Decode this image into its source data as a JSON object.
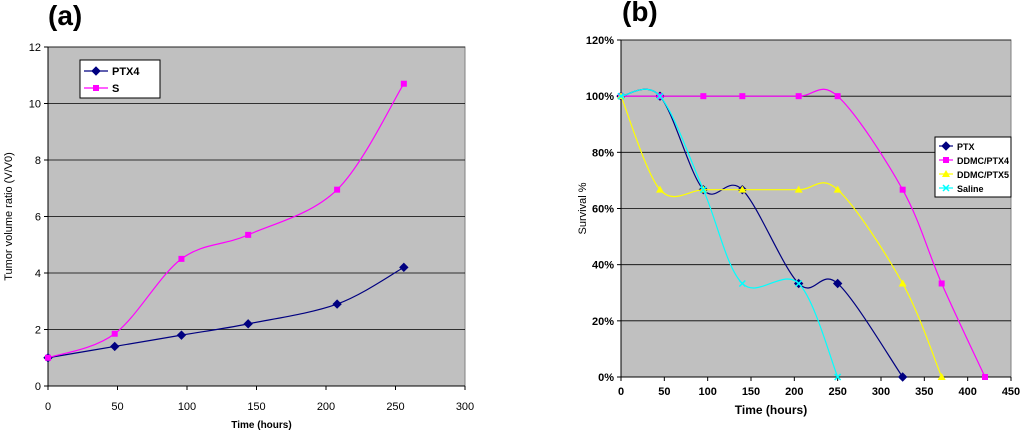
{
  "chart_data": [
    {
      "panel": "(a)",
      "type": "line",
      "xlabel": "Time (hours)",
      "ylabel": "Tumor volume ratio (V/V0)",
      "xlim": [
        0,
        300
      ],
      "ylim": [
        0,
        12
      ],
      "xticks": [
        0,
        50,
        100,
        150,
        200,
        250,
        300
      ],
      "yticks": [
        0,
        2,
        4,
        6,
        8,
        10,
        12
      ],
      "grid": "horizontal",
      "legend": "top-left",
      "series": [
        {
          "name": "PTX4",
          "color": "#000080",
          "marker": "diamond",
          "x": [
            0,
            48,
            96,
            144,
            208,
            256
          ],
          "y": [
            1.0,
            1.4,
            1.8,
            2.2,
            2.9,
            4.2
          ]
        },
        {
          "name": "S",
          "color": "#ff00ff",
          "marker": "square",
          "x": [
            0,
            48,
            96,
            144,
            208,
            256
          ],
          "y": [
            1.0,
            1.85,
            4.5,
            5.35,
            6.95,
            10.7
          ]
        }
      ]
    },
    {
      "panel": "(b)",
      "type": "line",
      "xlabel": "Time (hours)",
      "ylabel": "Survival %",
      "xlim": [
        0,
        450
      ],
      "ylim": [
        0,
        120
      ],
      "xticks": [
        0,
        50,
        100,
        150,
        200,
        250,
        300,
        350,
        400,
        450
      ],
      "yticks": [
        0,
        20,
        40,
        60,
        80,
        100,
        120
      ],
      "ytick_labels": [
        "0%",
        "20%",
        "40%",
        "60%",
        "80%",
        "100%",
        "120%"
      ],
      "grid": "horizontal",
      "legend": "right",
      "series": [
        {
          "name": "PTX",
          "color": "#000080",
          "marker": "diamond",
          "x": [
            0,
            45,
            95,
            140,
            205,
            250,
            325
          ],
          "y": [
            100,
            100,
            66.7,
            66.7,
            33.3,
            33.3,
            0
          ]
        },
        {
          "name": "DDMC/PTX4",
          "color": "#ff00ff",
          "marker": "square",
          "x": [
            0,
            45,
            95,
            140,
            205,
            250,
            325,
            370,
            420
          ],
          "y": [
            100,
            100,
            100,
            100,
            100,
            100,
            66.7,
            33.3,
            0
          ]
        },
        {
          "name": "DDMC/PTX5",
          "color": "#ffff00",
          "marker": "triangle",
          "x": [
            0,
            45,
            95,
            140,
            205,
            250,
            325,
            370
          ],
          "y": [
            100,
            66.7,
            66.7,
            66.7,
            66.7,
            66.7,
            33.3,
            0
          ]
        },
        {
          "name": "Saline",
          "color": "#00ffff",
          "marker": "x",
          "x": [
            0,
            45,
            95,
            140,
            205,
            250
          ],
          "y": [
            100,
            100,
            66.7,
            33.3,
            33.3,
            0
          ]
        }
      ]
    }
  ]
}
